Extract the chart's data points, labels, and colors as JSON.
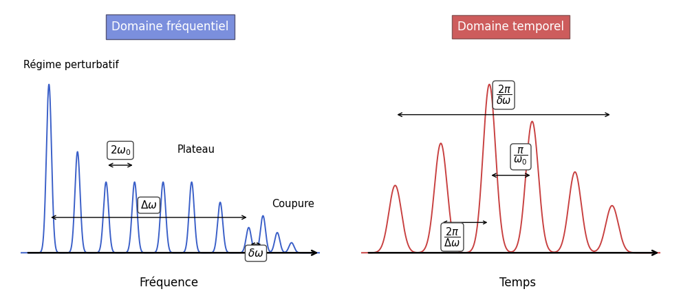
{
  "title_freq": "Domaine fréquentiel",
  "title_temp": "Domaine temporel",
  "title_freq_bg": "#7b8fdd",
  "title_temp_bg": "#cd5c5c",
  "title_text_color": "#ffffff",
  "freq_line_color": "#3a5fc8",
  "temp_line_color": "#c84040",
  "xlabel_freq": "Fréquence",
  "xlabel_temp": "Temps",
  "label_regime": "Régime perturbatif",
  "label_plateau": "Plateau",
  "label_coupure": "Coupure",
  "bg_color": "#ffffff",
  "freq_peak_positions": [
    1.0,
    2.0,
    3.0,
    4.0,
    5.0,
    6.0,
    7.0,
    8.0,
    8.5,
    9.0,
    9.5
  ],
  "freq_peak_amps": [
    1.0,
    0.6,
    0.42,
    0.42,
    0.42,
    0.42,
    0.3,
    0.15,
    0.22,
    0.12,
    0.06
  ],
  "freq_sigma": 0.09,
  "temp_peak_positions": [
    1.2,
    2.8,
    4.5,
    6.0,
    7.5,
    8.8
  ],
  "temp_peak_amps": [
    0.4,
    0.65,
    1.0,
    0.78,
    0.48,
    0.28
  ],
  "temp_sigma": 0.22
}
